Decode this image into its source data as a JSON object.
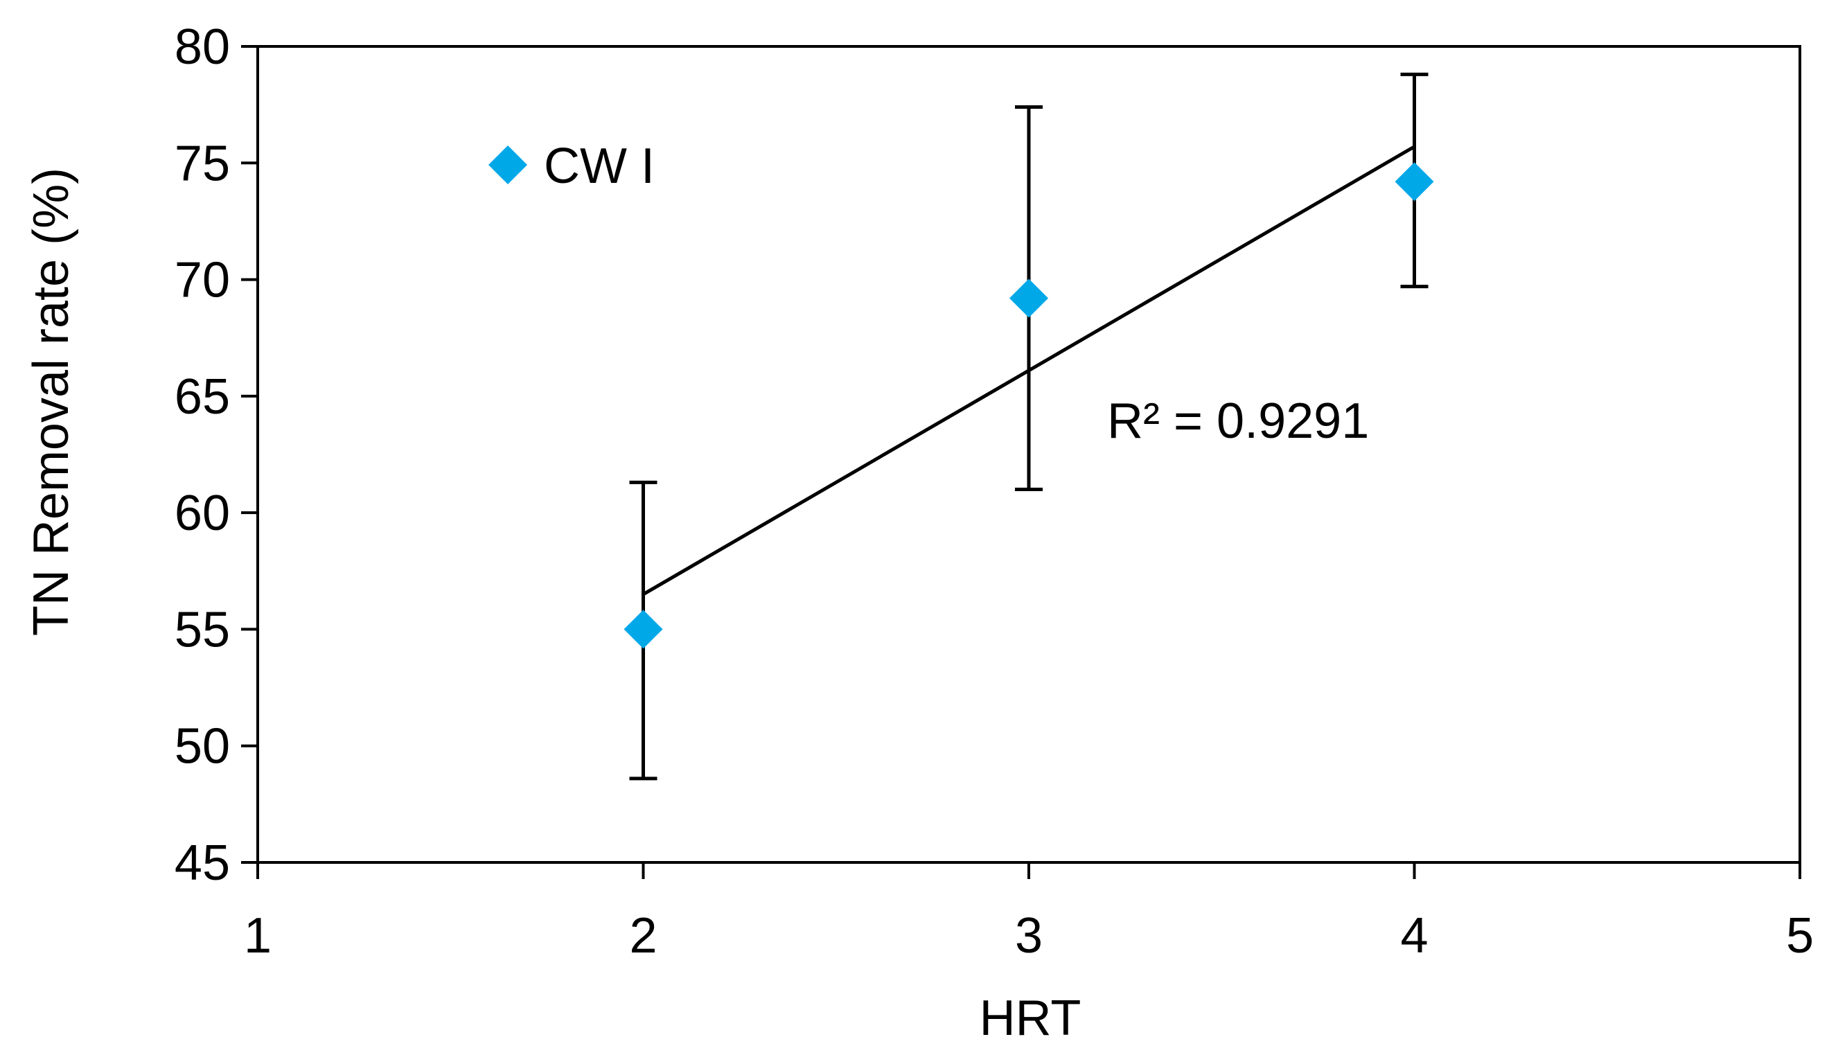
{
  "chart_data": {
    "type": "scatter",
    "xlabel": "HRT",
    "ylabel": "TN Removal rate (%)",
    "xlim": [
      1,
      5
    ],
    "ylim": [
      45,
      80
    ],
    "xticks": [
      1,
      2,
      3,
      4,
      5
    ],
    "yticks": [
      45,
      50,
      55,
      60,
      65,
      70,
      75,
      80
    ],
    "grid": false,
    "legend_position": "top-left",
    "series": [
      {
        "name": "CW I",
        "color": "#00a8e8",
        "marker": "diamond",
        "points": [
          {
            "x": 2,
            "y": 55.0,
            "err_low": 48.6,
            "err_high": 61.3
          },
          {
            "x": 3,
            "y": 69.2,
            "err_low": 61.0,
            "err_high": 77.4
          },
          {
            "x": 4,
            "y": 74.2,
            "err_low": 69.7,
            "err_high": 78.8
          }
        ]
      }
    ],
    "trendline": {
      "type": "linear",
      "x_start": 2,
      "y_start": 56.5,
      "x_end": 4,
      "y_end": 75.7,
      "r_squared_label": "R² = 0.9291"
    }
  }
}
